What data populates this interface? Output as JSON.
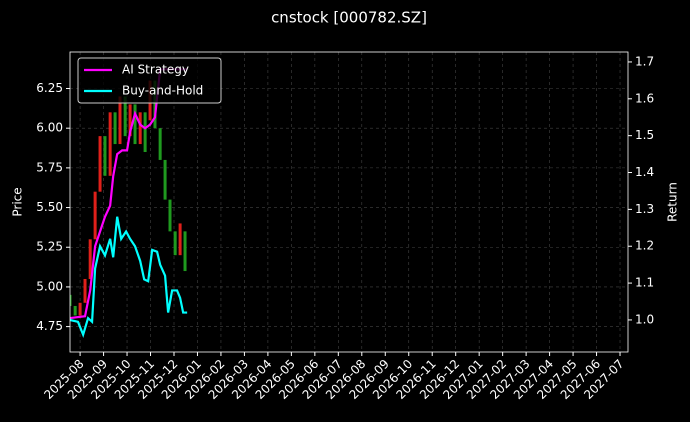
{
  "chart_data": {
    "type": "candlestick",
    "title": "cnstock [000782.SZ]",
    "ylabel": "Price",
    "y2label": "Return",
    "grid": true,
    "legend": "upper left",
    "xlim": [
      -0.43,
      23.34
    ],
    "xticks": [
      {
        "value": 0,
        "label": "2025-08"
      },
      {
        "value": 1,
        "label": "2025-09"
      },
      {
        "value": 2,
        "label": "2025-10"
      },
      {
        "value": 3,
        "label": "2025-11"
      },
      {
        "value": 4,
        "label": "2025-12"
      },
      {
        "value": 5,
        "label": "2026-01"
      },
      {
        "value": 6,
        "label": "2026-02"
      },
      {
        "value": 7,
        "label": "2026-03"
      },
      {
        "value": 8,
        "label": "2026-04"
      },
      {
        "value": 9,
        "label": "2026-05"
      },
      {
        "value": 10,
        "label": "2026-06"
      },
      {
        "value": 11,
        "label": "2026-07"
      },
      {
        "value": 12,
        "label": "2026-08"
      },
      {
        "value": 13,
        "label": "2026-09"
      },
      {
        "value": 14,
        "label": "2026-10"
      },
      {
        "value": 15,
        "label": "2026-11"
      },
      {
        "value": 16,
        "label": "2026-12"
      },
      {
        "value": 17,
        "label": "2027-01"
      },
      {
        "value": 18,
        "label": "2027-02"
      },
      {
        "value": 19,
        "label": "2027-03"
      },
      {
        "value": 20,
        "label": "2027-04"
      },
      {
        "value": 21,
        "label": "2027-05"
      },
      {
        "value": 22,
        "label": "2027-06"
      },
      {
        "value": 23,
        "label": "2027-07"
      }
    ],
    "ylim": [
      4.59,
      6.48
    ],
    "yticks": [
      4.75,
      {
        "value": 5,
        "label": "5.00"
      },
      5.25,
      {
        "value": 5.5,
        "label": "5.50"
      },
      5.75,
      {
        "value": 6,
        "label": "6.00"
      },
      6.25
    ],
    "y2lim": [
      0.913,
      1.727
    ],
    "y2ticks": [
      {
        "value": 1,
        "label": "1.0"
      },
      1.1,
      1.2,
      1.3,
      1.4,
      1.5,
      1.6,
      1.7
    ],
    "candles": {
      "up_color": "#e0201a",
      "down_color": "#1f9a1f",
      "x": [
        -0.43,
        -0.21,
        0,
        0.21,
        0.43,
        0.64,
        0.85,
        1.06,
        1.28,
        1.49,
        1.7,
        1.92,
        2.13,
        2.34,
        2.56,
        2.77,
        2.98,
        3.19,
        3.41,
        3.62,
        3.83,
        4.05,
        4.26,
        4.47
      ],
      "open": [
        4.95,
        4.88,
        4.82,
        4.9,
        5.05,
        5.3,
        5.6,
        5.95,
        5.7,
        6.1,
        5.9,
        6.2,
        5.95,
        6.15,
        5.9,
        6.1,
        6.05,
        6.3,
        6.0,
        5.8,
        5.55,
        5.35,
        5.2,
        5.35
      ],
      "close": [
        4.88,
        4.82,
        4.9,
        5.05,
        5.3,
        5.6,
        5.95,
        5.7,
        6.1,
        5.9,
        6.2,
        5.95,
        6.15,
        5.9,
        6.1,
        5.85,
        6.3,
        6.0,
        5.8,
        5.55,
        5.35,
        5.2,
        5.4,
        5.1
      ]
    },
    "series": [
      {
        "name": "AI Strategy",
        "color": "#ff00ff",
        "axis": "y2",
        "x": [
          -0.43,
          0.21,
          0.43,
          0.64,
          0.85,
          1.06,
          1.28,
          1.41,
          1.58,
          1.79,
          2.0,
          2.13,
          2.34,
          2.56,
          2.77,
          2.98,
          3.19,
          3.41,
          4.56
        ],
        "values": [
          1.005,
          1.01,
          1.08,
          1.2,
          1.24,
          1.28,
          1.31,
          1.39,
          1.45,
          1.46,
          1.46,
          1.51,
          1.56,
          1.53,
          1.52,
          1.53,
          1.55,
          1.68,
          1.68
        ]
      },
      {
        "name": "Buy-and-Hold",
        "color": "#00ffff",
        "axis": "y2",
        "x": [
          -0.43,
          -0.09,
          0.13,
          0.34,
          0.51,
          0.64,
          0.85,
          1.06,
          1.28,
          1.41,
          1.58,
          1.75,
          1.96,
          2.13,
          2.34,
          2.56,
          2.73,
          2.9,
          3.07,
          3.28,
          3.41,
          3.62,
          3.75,
          3.92,
          4.13,
          4.26,
          4.39,
          4.56
        ],
        "values": [
          1.0,
          0.995,
          0.96,
          1.005,
          0.995,
          1.14,
          1.2,
          1.175,
          1.22,
          1.17,
          1.28,
          1.22,
          1.24,
          1.22,
          1.2,
          1.16,
          1.11,
          1.105,
          1.19,
          1.185,
          1.15,
          1.12,
          1.02,
          1.08,
          1.08,
          1.06,
          1.02,
          1.02
        ]
      }
    ]
  }
}
